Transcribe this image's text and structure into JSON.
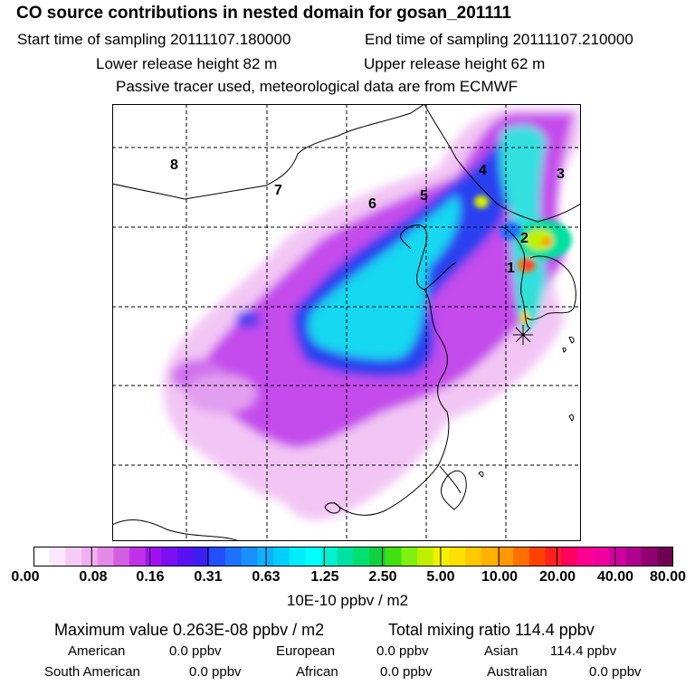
{
  "title": "CO  source contributions in nested domain for gosan_201111",
  "sampling": {
    "start_label": "Start time of sampling 20111107.180000",
    "end_label": "End time of sampling 20111107.210000"
  },
  "release": {
    "lower_label": "Lower release height   82 m",
    "upper_label": "Upper release height   62 m"
  },
  "tracer_note": "Passive tracer used, meteorological data are from ECMWF",
  "map": {
    "region_labels": [
      "1",
      "2",
      "3",
      "4",
      "5",
      "6",
      "7",
      "8"
    ],
    "receptor_icon": "asterisk-receptor-icon"
  },
  "colorbar": {
    "ticks": [
      "0.00",
      "0.08",
      "0.16",
      "0.31",
      "0.63",
      "1.25",
      "2.50",
      "5.00",
      "10.00",
      "20.00",
      "40.00",
      "80.00"
    ],
    "unit": "10E-10 ppbv / m2",
    "colors": [
      "#ffffff",
      "#fbe6fb",
      "#f6ccf6",
      "#f0b0f0",
      "#e58ae8",
      "#d45ee0",
      "#c030e8",
      "#a010f0",
      "#7a10f0",
      "#5a10f0",
      "#3a20f0",
      "#2050ff",
      "#2070ff",
      "#1890ff",
      "#10b0ff",
      "#00d0ff",
      "#00ecff",
      "#00ffff",
      "#00f0d0",
      "#00e0a0",
      "#00e070",
      "#10d040",
      "#40e010",
      "#80f010",
      "#c0f000",
      "#f0f000",
      "#ffe000",
      "#ffc800",
      "#ffb000",
      "#ff9800",
      "#ff7000",
      "#ff4000",
      "#ff2020",
      "#ff0060",
      "#ff0090",
      "#f000a0",
      "#d000a0",
      "#b00090",
      "#900070",
      "#700050"
    ]
  },
  "stats": {
    "max_label": "Maximum value  0.263E-08 ppbv / m2",
    "total_label": "Total mixing ratio      114.4 ppbv",
    "american_label": "American",
    "american_value": "0.0 ppbv",
    "european_label": "European",
    "european_value": "0.0 ppbv",
    "asian_label": "Asian",
    "asian_value": "114.4 ppbv",
    "south_american_label": "South American",
    "south_american_value": "0.0 ppbv",
    "african_label": "African",
    "african_value": "0.0 ppbv",
    "australian_label": "Australian",
    "australian_value": "0.0 ppbv"
  }
}
